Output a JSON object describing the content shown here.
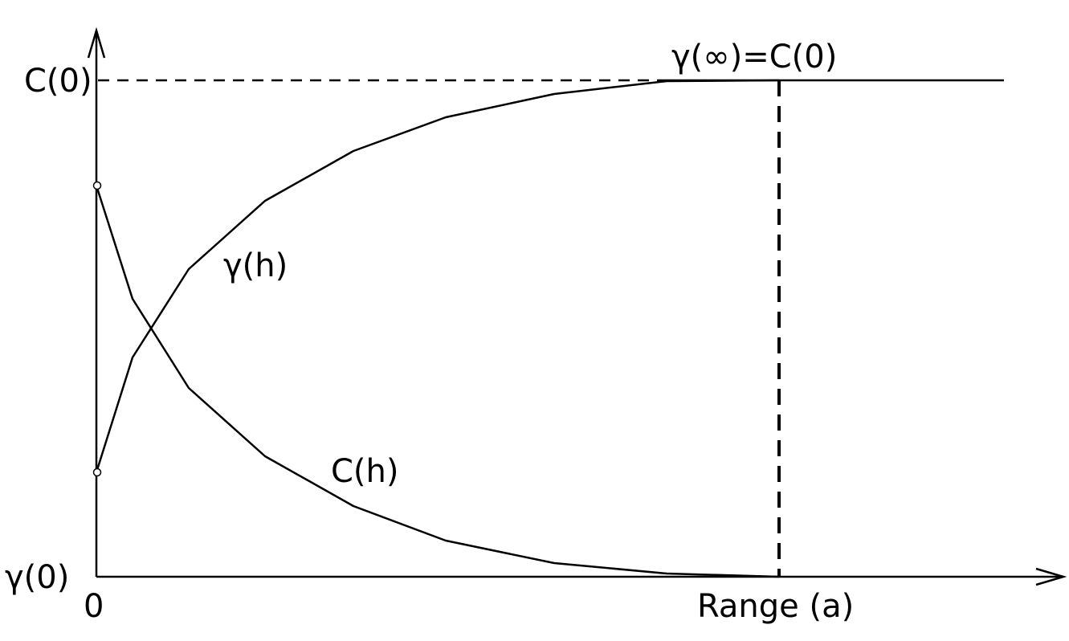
{
  "labels": {
    "y_top": "C(0)",
    "y_bottom": "γ(0)",
    "origin": "0",
    "x_axis": "Range (a)",
    "sill": "γ(∞)=C(0)",
    "semivariogram": "γ(h)",
    "covariance": "C(h)"
  },
  "colors": {
    "ink": "#000000",
    "background": "#ffffff"
  }
}
